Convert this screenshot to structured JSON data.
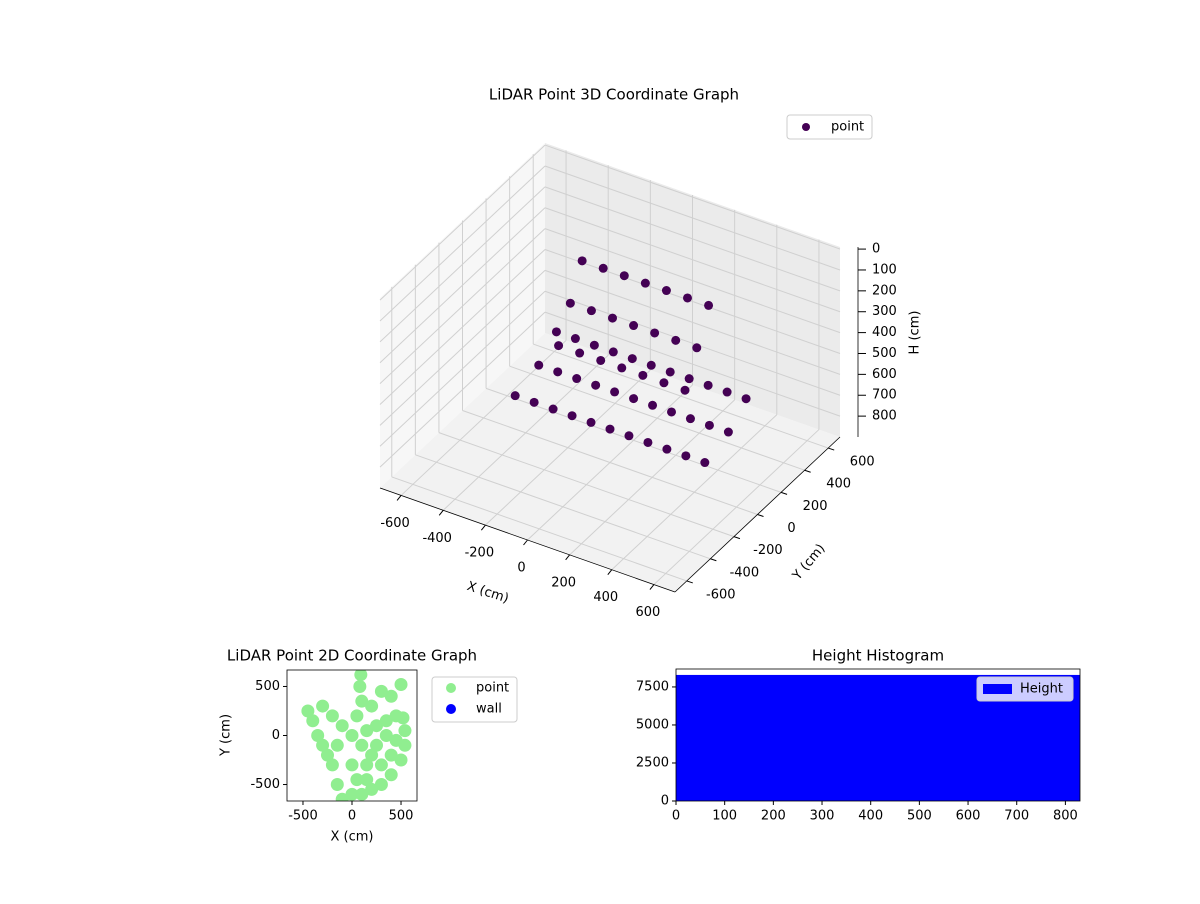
{
  "chart_data": [
    {
      "type": "scatter3d",
      "title": "LiDAR Point 3D Coordinate Graph",
      "xlabel": "X (cm)",
      "ylabel": "Y (cm)",
      "zlabel": "H (cm)",
      "xlim": [
        -700,
        700
      ],
      "ylim": [
        -700,
        700
      ],
      "zlim": [
        900,
        -10
      ],
      "xticks": [
        -600,
        -400,
        -200,
        0,
        200,
        400,
        600
      ],
      "yticks": [
        -600,
        -400,
        -200,
        0,
        200,
        400,
        600
      ],
      "zticks": [
        0,
        100,
        200,
        300,
        400,
        500,
        600,
        700,
        800
      ],
      "series": [
        {
          "name": "point",
          "color": "#440154",
          "x": [
            -450,
            -360,
            -270,
            -180,
            -90,
            0,
            90,
            180,
            270,
            360,
            450,
            -450,
            -360,
            -270,
            -180,
            -90,
            0,
            90,
            180,
            270,
            360,
            450,
            -450,
            -360,
            -270,
            -180,
            -90,
            0,
            90,
            180,
            270,
            360,
            450,
            -300,
            -200,
            -100,
            0,
            100,
            200,
            300,
            -300,
            -200,
            -100,
            0,
            100,
            200,
            300,
            -300,
            -200,
            -100,
            0,
            100,
            200,
            300
          ],
          "y": [
            0,
            0,
            0,
            0,
            0,
            0,
            0,
            0,
            0,
            0,
            0,
            200,
            200,
            200,
            200,
            200,
            200,
            200,
            200,
            200,
            200,
            200,
            350,
            350,
            350,
            350,
            350,
            350,
            350,
            350,
            350,
            350,
            350,
            300,
            300,
            300,
            300,
            300,
            300,
            300,
            200,
            200,
            200,
            200,
            200,
            200,
            200,
            100,
            100,
            100,
            100,
            100,
            100,
            100
          ],
          "z": [
            740,
            740,
            740,
            740,
            740,
            740,
            740,
            740,
            740,
            740,
            740,
            700,
            700,
            700,
            700,
            700,
            700,
            700,
            700,
            700,
            700,
            700,
            620,
            620,
            620,
            620,
            620,
            620,
            620,
            620,
            620,
            620,
            620,
            200,
            200,
            200,
            200,
            200,
            200,
            200,
            350,
            350,
            350,
            350,
            350,
            350,
            350,
            500,
            500,
            500,
            500,
            500,
            500,
            500
          ]
        }
      ]
    },
    {
      "type": "scatter",
      "title": "LiDAR Point 2D Coordinate Graph",
      "xlabel": "X (cm)",
      "ylabel": "Y (cm)",
      "xlim": [
        -663,
        663
      ],
      "ylim": [
        -668,
        668
      ],
      "xticks": [
        -500,
        0,
        500
      ],
      "yticks": [
        -500,
        0,
        500
      ],
      "series": [
        {
          "name": "point",
          "color": "#90ee90",
          "x": [
            100,
            200,
            300,
            400,
            500,
            540,
            540,
            520,
            450,
            350,
            250,
            150,
            100,
            200,
            300,
            400,
            450,
            350,
            250,
            150,
            50,
            0,
            -100,
            -150,
            -200,
            -300,
            -350,
            -400,
            -450,
            -300,
            -200,
            -100,
            0,
            50,
            100,
            80,
            90,
            300,
            400,
            500,
            200,
            -250,
            -150,
            0,
            150
          ],
          "y": [
            -600,
            -550,
            -500,
            -400,
            -250,
            -100,
            50,
            180,
            200,
            150,
            100,
            50,
            -100,
            -200,
            -300,
            -200,
            -50,
            0,
            -100,
            -300,
            -450,
            -600,
            -650,
            -500,
            -300,
            -100,
            0,
            150,
            250,
            300,
            200,
            100,
            0,
            200,
            350,
            500,
            620,
            450,
            400,
            520,
            300,
            -200,
            -100,
            -300,
            -450
          ]
        },
        {
          "name": "wall",
          "color": "#0000ff",
          "x": [],
          "y": []
        }
      ]
    },
    {
      "type": "histogram",
      "title": "Height Histogram",
      "xlim": [
        0,
        830
      ],
      "ylim": [
        0,
        8680
      ],
      "xticks": [
        0,
        100,
        200,
        300,
        400,
        500,
        600,
        700,
        800
      ],
      "yticks": [
        0,
        2500,
        5000,
        7500
      ],
      "series": [
        {
          "name": "Height",
          "color": "#0000ff",
          "bins": [
            0,
            830
          ],
          "counts": [
            8290
          ]
        }
      ]
    }
  ]
}
